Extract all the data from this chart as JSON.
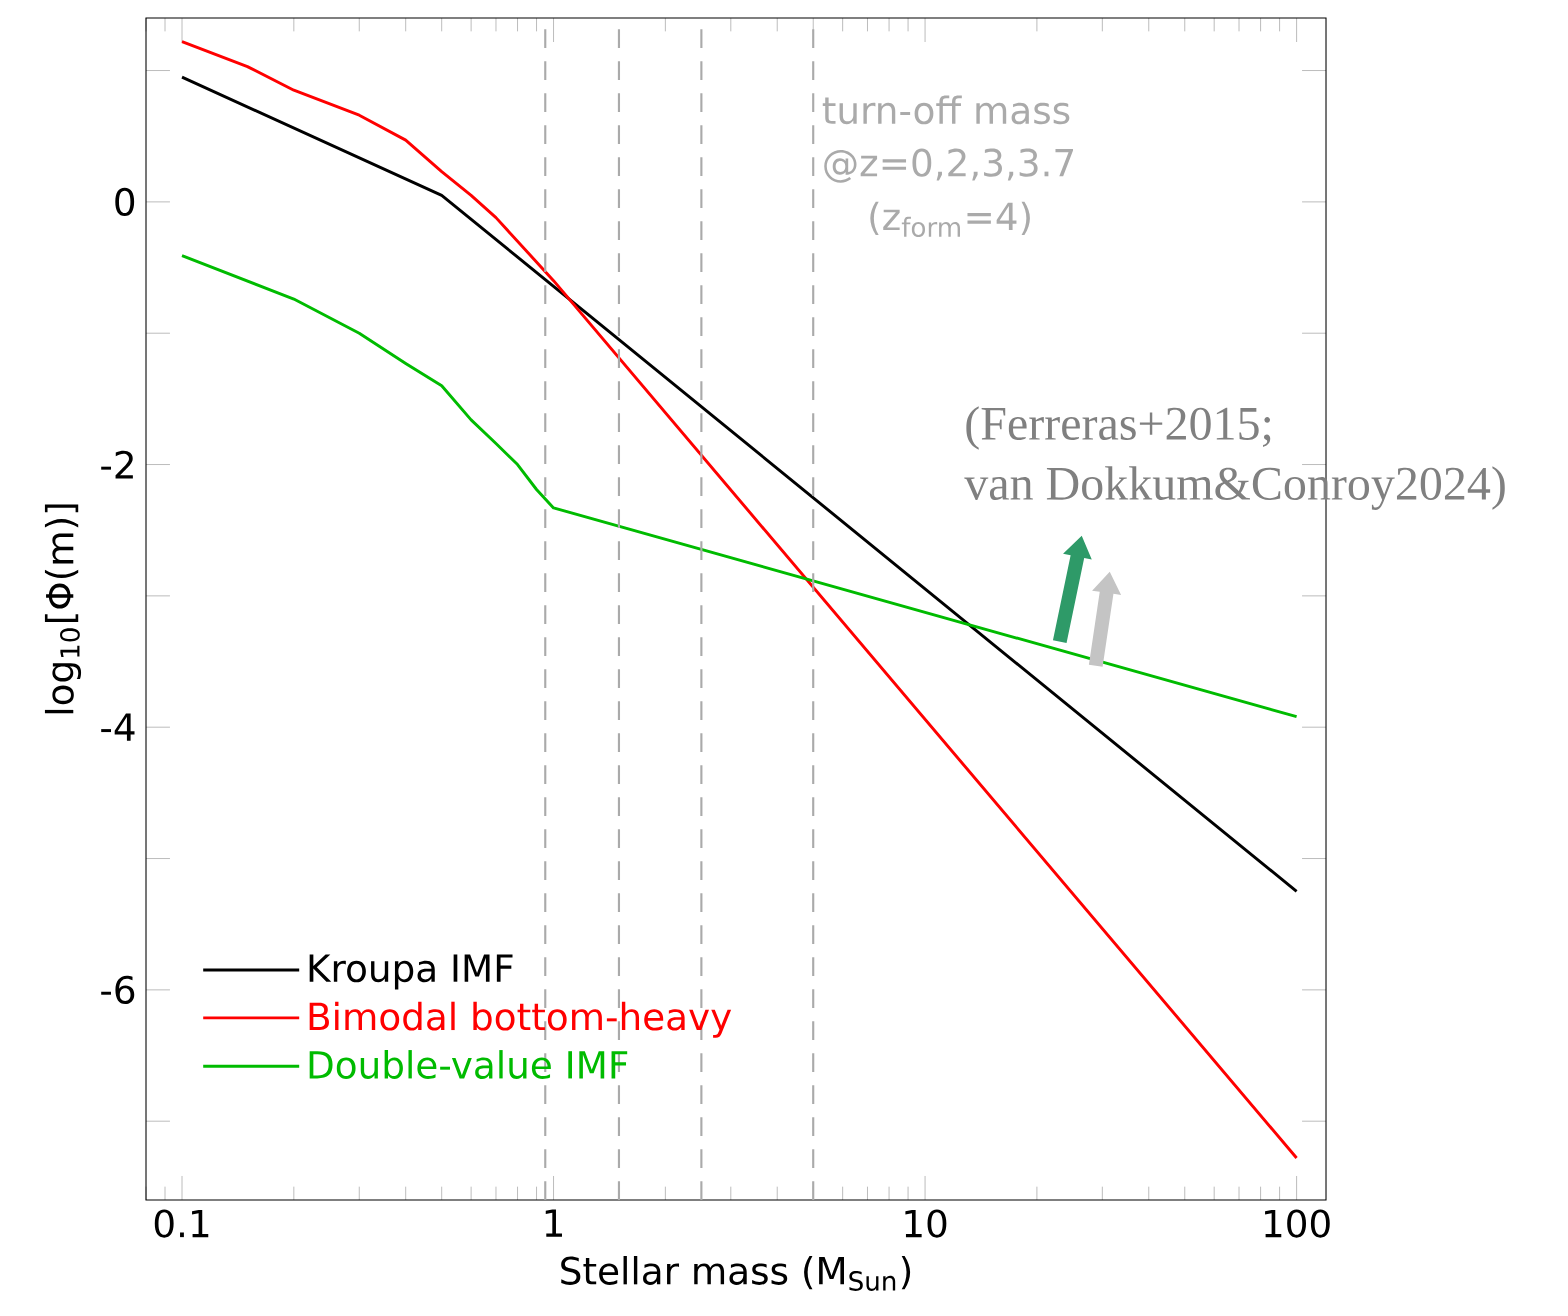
{
  "chart_data": {
    "type": "line",
    "xlabel": "Stellar mass (M$_{Sun}$)",
    "ylabel": "log$_{10}$[Φ(m)]",
    "log": "x",
    "xlim": [
      0.08,
      120
    ],
    "ylim": [
      -7.6,
      1.4
    ],
    "xticks": [
      0.1,
      1,
      10,
      100
    ],
    "yticks": [
      {
        "value": -7,
        "label": null
      },
      -6,
      {
        "value": -5,
        "label": null
      },
      -4,
      {
        "value": -3,
        "label": null
      },
      -2,
      {
        "value": -1,
        "label": null
      },
      0,
      {
        "value": 1,
        "label": null
      }
    ],
    "legend": "bottom left",
    "marker": "none",
    "line_style": "solid",
    "series": [
      {
        "name": "Kroupa IMF",
        "color": "#000000",
        "x": [
          0.1,
          0.5,
          100
        ],
        "values": [
          0.95,
          0.05,
          -5.25
        ]
      },
      {
        "name": "Bimodal bottom-heavy",
        "color": "#ff0000",
        "x": [
          0.1,
          0.15,
          0.2,
          0.3,
          0.4,
          0.5,
          0.6,
          0.7,
          1,
          100
        ],
        "values": [
          1.22,
          1.03,
          0.85,
          0.66,
          0.47,
          0.23,
          0.05,
          -0.12,
          -0.6,
          -7.28
        ]
      },
      {
        "name": "Double-value IMF",
        "color": "#00bb00",
        "x": [
          0.1,
          0.2,
          0.3,
          0.4,
          0.5,
          0.6,
          0.7,
          0.8,
          0.9,
          1,
          100
        ],
        "values": [
          -0.41,
          -0.74,
          -1.0,
          -1.23,
          -1.4,
          -1.66,
          -1.84,
          -2.0,
          -2.19,
          -2.33,
          -3.92
        ]
      }
    ],
    "ref_lines": [
      {
        "axis": "x",
        "value": 0.95,
        "color": "#aaaaaa",
        "line_style": "dashed"
      },
      {
        "axis": "x",
        "value": 1.5,
        "color": "#aaaaaa",
        "line_style": "dashed"
      },
      {
        "axis": "x",
        "value": 2.5,
        "color": "#aaaaaa",
        "line_style": "dashed"
      },
      {
        "axis": "x",
        "value": 5.0,
        "color": "#aaaaaa",
        "line_style": "dashed"
      }
    ],
    "annotations": [
      "turn-off mass",
      "@z=0,2,3,3.7",
      "(z$_{form}$=4)",
      "(Ferreras+2015;",
      "van Dokkum&Conroy2024)"
    ]
  }
}
